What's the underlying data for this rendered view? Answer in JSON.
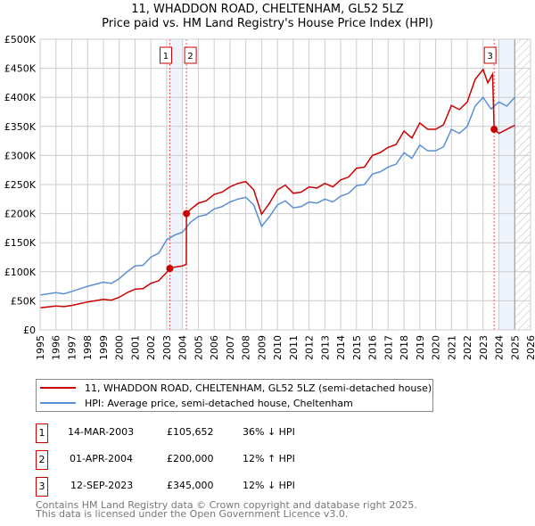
{
  "chart_data": {
    "type": "line",
    "title": "11, WHADDON ROAD, CHELTENHAM, GL52 5LZ",
    "subtitle": "Price paid vs. HM Land Registry's House Price Index (HPI)",
    "xlim": [
      1995,
      2026
    ],
    "ylim": [
      0,
      500000
    ],
    "yticks": [
      0,
      50000,
      100000,
      150000,
      200000,
      250000,
      300000,
      350000,
      400000,
      450000,
      500000
    ],
    "ytick_labels": [
      "£0",
      "£50K",
      "£100K",
      "£150K",
      "£200K",
      "£250K",
      "£300K",
      "£350K",
      "£400K",
      "£450K",
      "£500K"
    ],
    "xticks": [
      "1995",
      "1996",
      "1997",
      "1998",
      "1999",
      "2000",
      "2001",
      "2002",
      "2003",
      "2004",
      "2005",
      "2006",
      "2007",
      "2008",
      "2009",
      "2010",
      "2011",
      "2012",
      "2013",
      "2014",
      "2015",
      "2016",
      "2017",
      "2018",
      "2019",
      "2020",
      "2021",
      "2022",
      "2023",
      "2024",
      "2025",
      "2026"
    ],
    "grid": true,
    "series": [
      {
        "name": "11, WHADDON ROAD, CHELTENHAM, GL52 5LZ (semi-detached house)",
        "color": "#cc0000",
        "x": [
          1995,
          1996,
          1996.5,
          1997,
          1998,
          1999,
          1999.5,
          2000,
          2000.5,
          2001,
          2001.5,
          2002,
          2002.5,
          2003,
          2003.2,
          2003.5,
          2004,
          2004.24,
          2004.25,
          2004.5,
          2005,
          2005.5,
          2006,
          2006.5,
          2007,
          2007.5,
          2008,
          2008.5,
          2009,
          2009.5,
          2010,
          2010.5,
          2011,
          2011.5,
          2012,
          2012.5,
          2013,
          2013.5,
          2014,
          2014.5,
          2015,
          2015.5,
          2016,
          2016.5,
          2017,
          2017.5,
          2018,
          2018.5,
          2019,
          2019.5,
          2020,
          2020.5,
          2021,
          2021.5,
          2022,
          2022.5,
          2023,
          2023.3,
          2023.6,
          2023.7,
          2024,
          2024.5,
          2025
        ],
        "y": [
          38000,
          41000,
          40000,
          42000,
          48000,
          52500,
          51000,
          56000,
          64000,
          70000,
          71000,
          80000,
          84500,
          99000,
          105652,
          108000,
          110000,
          113000,
          200000,
          207000,
          218000,
          222000,
          233000,
          237000,
          246000,
          252000,
          255000,
          241000,
          199000,
          218000,
          241000,
          249000,
          235000,
          237000,
          246000,
          244000,
          252000,
          246000,
          258000,
          263000,
          278000,
          280000,
          300000,
          305000,
          314000,
          319000,
          342000,
          330000,
          356000,
          345000,
          345000,
          353000,
          386000,
          379000,
          392000,
          431000,
          448000,
          425000,
          440000,
          345000,
          338000,
          345000,
          352000
        ]
      },
      {
        "name": "HPI: Average price, semi-detached house, Cheltenham",
        "color": "#5b8fd4",
        "x": [
          1995,
          1996,
          1996.5,
          1997,
          1998,
          1999,
          1999.5,
          2000,
          2000.5,
          2001,
          2001.5,
          2002,
          2002.5,
          2003,
          2003.5,
          2004,
          2004.5,
          2005,
          2005.5,
          2006,
          2006.5,
          2007,
          2007.5,
          2008,
          2008.5,
          2009,
          2009.5,
          2010,
          2010.5,
          2011,
          2011.5,
          2012,
          2012.5,
          2013,
          2013.5,
          2014,
          2014.5,
          2015,
          2015.5,
          2016,
          2016.5,
          2017,
          2017.5,
          2018,
          2018.5,
          2019,
          2019.5,
          2020,
          2020.5,
          2021,
          2021.5,
          2022,
          2022.5,
          2023,
          2023.5,
          2024,
          2024.5,
          2025
        ],
        "y": [
          60000,
          64000,
          62000,
          66000,
          75000,
          82000,
          80000,
          88000,
          100000,
          110000,
          111000,
          125000,
          132000,
          155000,
          163000,
          168000,
          185000,
          195000,
          198000,
          208000,
          212000,
          220000,
          225000,
          228000,
          215000,
          178000,
          195000,
          215000,
          222000,
          210000,
          212000,
          220000,
          218000,
          225000,
          220000,
          230000,
          235000,
          248000,
          250000,
          268000,
          272000,
          280000,
          285000,
          305000,
          295000,
          318000,
          308000,
          308000,
          315000,
          345000,
          338000,
          350000,
          385000,
          400000,
          380000,
          392000,
          385000,
          400000
        ]
      }
    ],
    "sales": [
      {
        "label": "1",
        "x": 2003.2,
        "price": 105652,
        "date": "14-MAR-2003",
        "price_text": "£105,652",
        "hpi": "36% ↓ HPI"
      },
      {
        "label": "2",
        "x": 2004.25,
        "price": 200000,
        "date": "01-APR-2004",
        "price_text": "£200,000",
        "hpi": "12% ↑ HPI"
      },
      {
        "label": "3",
        "x": 2023.7,
        "price": 345000,
        "date": "12-SEP-2023",
        "price_text": "£345,000",
        "hpi": "12% ↓ HPI"
      }
    ],
    "shaded_ranges": [
      [
        2003.2,
        2004.0
      ],
      [
        2024.0,
        2025.0
      ]
    ],
    "forecast_from": 2025.0,
    "legend_position": "below"
  },
  "footer": [
    "Contains HM Land Registry data © Crown copyright and database right 2025.",
    "This data is licensed under the Open Government Licence v3.0."
  ]
}
